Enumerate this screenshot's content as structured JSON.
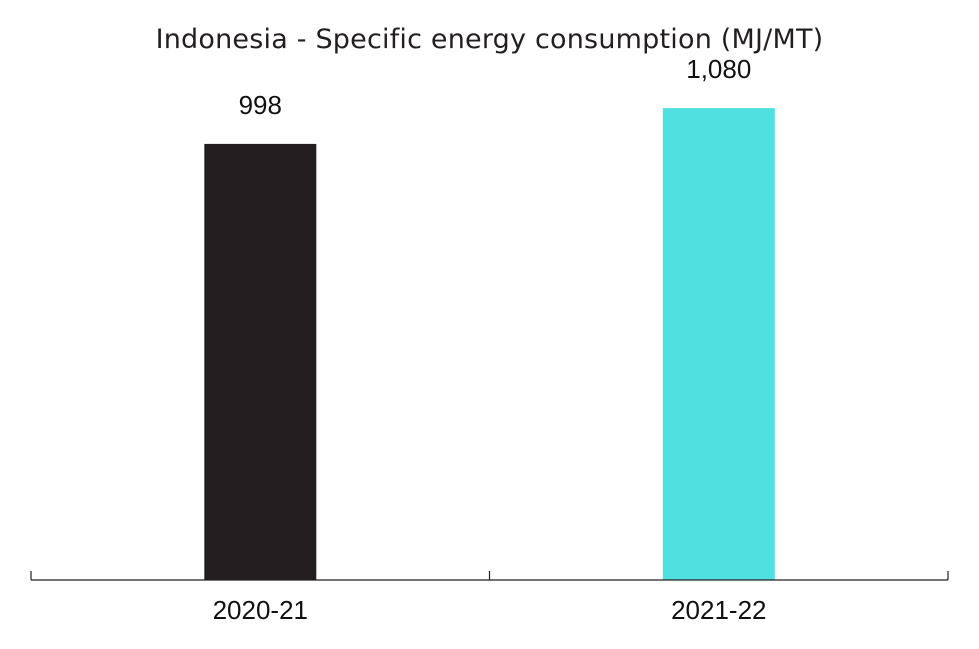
{
  "chart_data": {
    "type": "bar",
    "title": "Indonesia - Specific energy consumption (MJ/MT)",
    "xlabel": "",
    "ylabel": "",
    "categories": [
      "2020-21",
      "2021-22"
    ],
    "values": [
      998,
      1080
    ],
    "value_labels": [
      "998",
      "1,080"
    ],
    "bar_colors": [
      "#231f20",
      "#4fe0df"
    ],
    "axis_color": "#231f20",
    "ylim": [
      0,
      1190
    ],
    "grid": false,
    "legend": "none"
  }
}
